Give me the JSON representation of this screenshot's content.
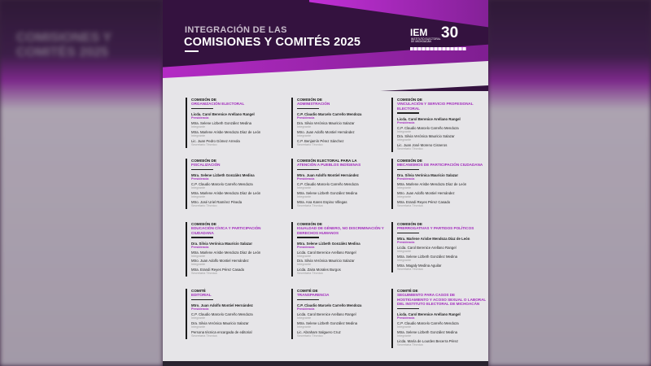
{
  "header": {
    "subtitle": "INTEGRACIÓN DE LAS",
    "title": "COMISIONES Y COMITÉS 2025"
  },
  "logo": {
    "text": "IEM 30",
    "institution": "INSTITUTO ELECTORAL DE MICHOACÁN"
  },
  "colors": {
    "accent": "#a22bbd",
    "header_bg": "#34123f",
    "body_bg": "#e6e5e8"
  },
  "committees": [
    {
      "kind": "COMISIÓN DE",
      "name": "ORGANIZACIÓN ELECTORAL",
      "members": [
        {
          "n": "Licda. Carol Berenice Arellano Rangel",
          "r": "Presidencia"
        },
        {
          "n": "Mtra. Selene Lizbeth González Medina",
          "r": "Integrante"
        },
        {
          "n": "Mtra. Marlene Arisbe Mendoza Díaz de León",
          "r": "Integrante"
        },
        {
          "n": "Lic. Juan Pedro Gómez Arreola",
          "r": "Secretario Técnico"
        }
      ]
    },
    {
      "kind": "COMISIÓN DE",
      "name": "ADMINISTRACIÓN",
      "members": [
        {
          "n": "C.P. Claudio Marcelo Carreño Mendoza",
          "r": "Presidencia"
        },
        {
          "n": "Dra. Silvia Verónica Mauricio Salazar",
          "r": "Integrante"
        },
        {
          "n": "Mtro. Juan Adolfo Montiel Hernández",
          "r": "Integrante"
        },
        {
          "n": "C.P. Benjamín Pérez Sánchez",
          "r": "Secretario Técnico"
        }
      ]
    },
    {
      "kind": "COMISIÓN DE",
      "name": "VINCULACIÓN Y SERVICIO PROFESIONAL ELECTORAL",
      "members": [
        {
          "n": "Licda. Carol Berenice Arellano Rangel",
          "r": "Presidencia"
        },
        {
          "n": "C.P. Claudio Marcelo Carreño Mendoza",
          "r": "Integrante"
        },
        {
          "n": "Dra. Silvia Verónica Mauricio Salazar",
          "r": "Integrante"
        },
        {
          "n": "Lic. Juan José Moreno Cisneros",
          "r": "Secretario Técnico"
        }
      ]
    },
    {
      "kind": "COMISIÓN DE",
      "name": "FISCALIZACIÓN",
      "members": [
        {
          "n": "Mtra. Selene Lizbeth González Medina",
          "r": "Presidencia"
        },
        {
          "n": "C.P. Claudio Marcelo Carreño Mendoza",
          "r": "Integrante"
        },
        {
          "n": "Mtra. Marlene Arisbe Mendoza Díaz de León",
          "r": "Integrante"
        },
        {
          "n": "Mtro. José Uriel Ramírez Pineda",
          "r": "Secretario Técnico"
        }
      ]
    },
    {
      "kind": "COMISIÓN ELECTORAL PARA LA",
      "name": "ATENCIÓN A PUEBLOS INDÍGENAS",
      "members": [
        {
          "n": "Mtro. Juan Adolfo Montiel Hernández",
          "r": "Presidencia"
        },
        {
          "n": "C.P. Claudio Marcelo Carreño Mendoza",
          "r": "Integrante"
        },
        {
          "n": "Mtra. Selene Lizbeth González Medina",
          "r": "Integrante"
        },
        {
          "n": "Mtra. Ana Karen Espino Villegas",
          "r": "Secretaria Técnica"
        }
      ]
    },
    {
      "kind": "COMISIÓN DE",
      "name": "MECANISMOS DE PARTICIPACIÓN CIUDADANA",
      "members": [
        {
          "n": "Dra. Silvia Verónica Mauricio Salazar",
          "r": "Presidencia"
        },
        {
          "n": "Mtra. Marlene Arisbe Mendoza Díaz de León",
          "r": "Integrante"
        },
        {
          "n": "Mtro. Juan Adolfo Montiel Hernández",
          "r": "Integrante"
        },
        {
          "n": "Mtra. Erandi Reyes Pérez Casado",
          "r": "Secretaria Técnica"
        }
      ]
    },
    {
      "kind": "COMISIÓN DE",
      "name": "EDUCACIÓN CÍVICA Y PARTICIPACIÓN CIUDADANA",
      "members": [
        {
          "n": "Dra. Silvia Verónica Mauricio Salazar",
          "r": "Presidencia"
        },
        {
          "n": "Mtra. Marlene Arisbe Mendoza Díaz de León",
          "r": "Integrante"
        },
        {
          "n": "Mtro. Juan Adolfo Montiel Hernández",
          "r": "Integrante"
        },
        {
          "n": "Mtra. Erandi Reyes Pérez Casado",
          "r": "Secretaria Técnica"
        }
      ]
    },
    {
      "kind": "COMISIÓN DE",
      "name": "IGUALDAD DE GÉNERO, NO DISCRIMINACIÓN Y DERECHOS HUMANOS",
      "members": [
        {
          "n": "Mtra. Selene Lizbeth González Medina",
          "r": "Presidencia"
        },
        {
          "n": "Licda. Carol Berenice Arellano Rangel",
          "r": "Integrante"
        },
        {
          "n": "Dra. Silvia Verónica Mauricio Salazar",
          "r": "Integrante"
        },
        {
          "n": "Licda. Zaira Morales Burgos",
          "r": "Secretaria Técnica"
        }
      ]
    },
    {
      "kind": "COMISIÓN DE",
      "name": "PRERROGATIVAS Y PARTIDOS POLÍTICOS",
      "members": [
        {
          "n": "Mtra. Marlene Arisbe Mendoza Díaz de León",
          "r": "Presidencia"
        },
        {
          "n": "Licda. Carol Berenice Arellano Rangel",
          "r": "Integrante"
        },
        {
          "n": "Mtra. Selene Lizbeth González Medina",
          "r": "Integrante"
        },
        {
          "n": "Mtra. Magaly Medina Aguilar",
          "r": "Secretaria Técnica"
        }
      ]
    },
    {
      "kind": "COMITÉ",
      "name": "EDITORIAL",
      "members": [
        {
          "n": "Mtro. Juan Adolfo Montiel Hernández",
          "r": "Presidencia"
        },
        {
          "n": "C.P. Claudio Marcelo Carreño Mendoza",
          "r": "Integrante"
        },
        {
          "n": "Dra. Silvia Verónica Mauricio Salazar",
          "r": "Integrante"
        },
        {
          "n": "Persona técnica encargada de editorial",
          "r": "Secretaria Técnica"
        }
      ]
    },
    {
      "kind": "COMITÉ DE",
      "name": "TRANSPARENCIA",
      "members": [
        {
          "n": "C.P. Claudio Marcelo Carreño Mendoza",
          "r": "Presidencia"
        },
        {
          "n": "Licda. Carol Berenice Arellano Rangel",
          "r": "Integrante"
        },
        {
          "n": "Mtra. Selene Lizbeth González Medina",
          "r": "Integrante"
        },
        {
          "n": "Lic. Abraham Salguero Cruz",
          "r": "Secretario Técnico"
        }
      ]
    },
    {
      "kind": "COMITÉ DE",
      "name": "SEGUIMIENTO PARA CASOS DE HOSTIGAMIENTO Y ACOSO SEXUAL O LABORAL DEL INSTITUTO ELECTORAL DE MICHOACÁN",
      "members": [
        {
          "n": "Licda. Carol Berenice Arellano Rangel",
          "r": "Presidencia"
        },
        {
          "n": "C.P. Claudio Marcelo Carreño Mendoza",
          "r": "Integrante"
        },
        {
          "n": "Mtra. Selene Lizbeth González Medina",
          "r": "Integrante"
        },
        {
          "n": "Licda. María de Lourdes Becerra Pérez",
          "r": "Secretaria Técnica"
        }
      ]
    }
  ]
}
